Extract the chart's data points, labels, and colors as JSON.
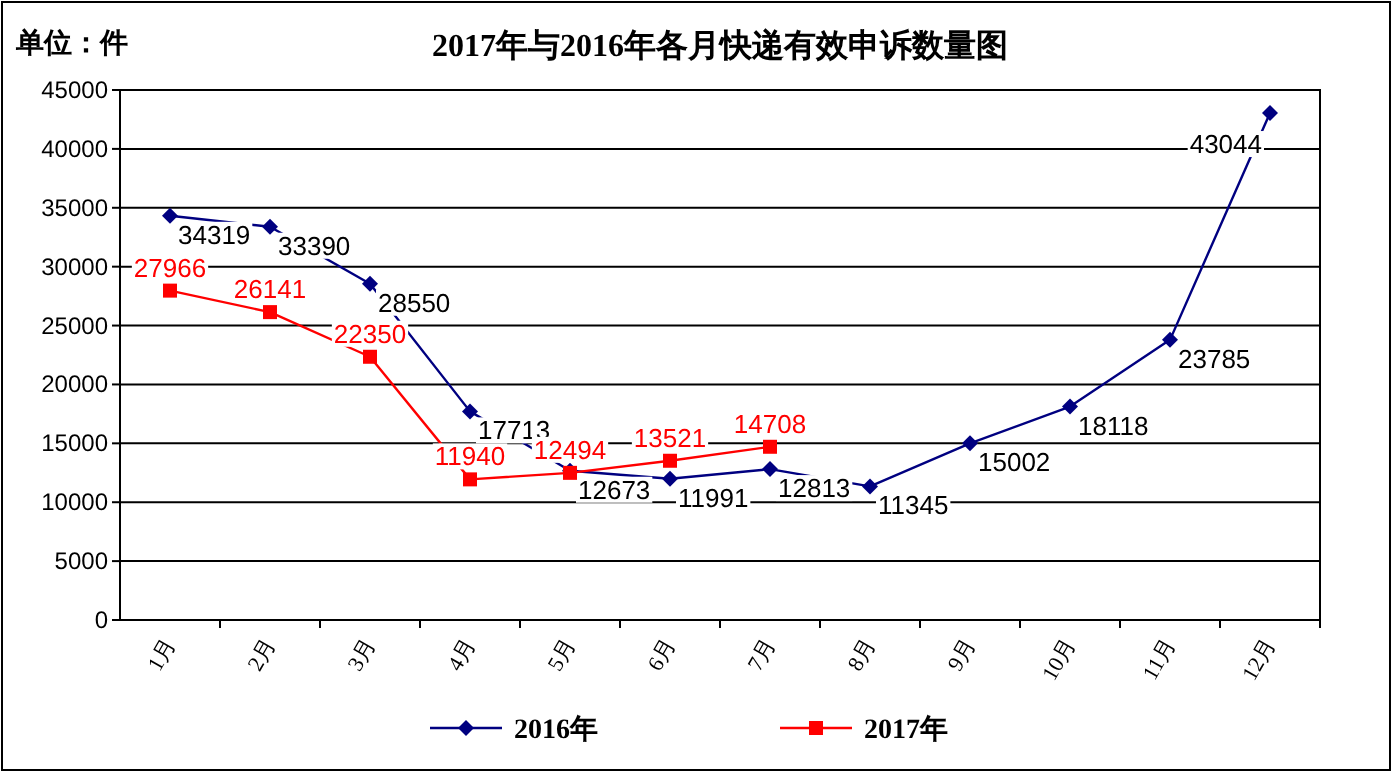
{
  "chart_data": {
    "type": "line",
    "title": "2017年与2016年各月快递有效申诉数量图",
    "ylabel": "单位：件",
    "categories": [
      "1月",
      "2月",
      "3月",
      "4月",
      "5月",
      "6月",
      "7月",
      "8月",
      "9月",
      "10月",
      "11月",
      "12月"
    ],
    "series": [
      {
        "name": "2016年",
        "color": "#000080",
        "marker": "diamond",
        "values": [
          34319,
          33390,
          28550,
          17713,
          12673,
          11991,
          12813,
          11345,
          15002,
          18118,
          23785,
          43044
        ]
      },
      {
        "name": "2017年",
        "color": "#ff0000",
        "marker": "square",
        "values": [
          27966,
          26141,
          22350,
          11940,
          12494,
          13521,
          14708,
          null,
          null,
          null,
          null,
          null
        ]
      }
    ],
    "ylim": [
      0,
      45000
    ],
    "yticks": [
      0,
      5000,
      10000,
      15000,
      20000,
      25000,
      30000,
      35000,
      40000,
      45000
    ],
    "grid": "y",
    "legend": "bottom",
    "data_labels": true
  }
}
